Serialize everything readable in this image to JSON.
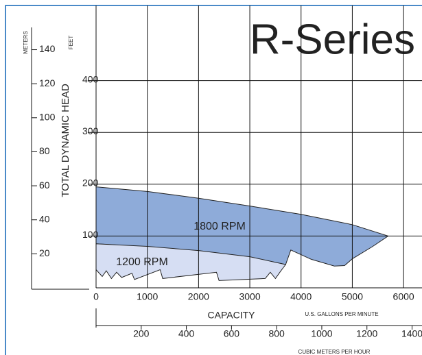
{
  "chart_data": {
    "type": "area",
    "title": "R-Series",
    "y_label": "TOTAL DYNAMIC HEAD",
    "y_unit": "FEET",
    "y2_unit": "METERS",
    "x_label": "CAPACITY",
    "x_unit": "U.S. GALLONS PER MINUTE",
    "x2_unit": "CUBIC METERS PER HOUR",
    "xlim": [
      0,
      6360
    ],
    "xticks": [
      0,
      1000,
      2000,
      3000,
      4000,
      5000,
      6000
    ],
    "x2lim": [
      0,
      1444
    ],
    "x2ticks": [
      200,
      400,
      600,
      800,
      1000,
      1200,
      1400
    ],
    "ylim": [
      0,
      545
    ],
    "yticks": [
      100,
      200,
      300,
      400
    ],
    "y2lim": [
      0,
      166
    ],
    "y2ticks": [
      20,
      40,
      60,
      80,
      100,
      120,
      140
    ],
    "grid": true,
    "series": [
      {
        "name": "1800 RPM",
        "color": "#8eabd9",
        "x": [
          0,
          1000,
          2000,
          3000,
          4000,
          5000,
          5700,
          5400,
          5000,
          4850,
          4650,
          4200,
          3800,
          3700,
          3000,
          2000,
          1000,
          0
        ],
        "values": [
          195,
          186,
          173,
          158,
          142,
          122,
          100,
          80,
          56,
          43,
          42,
          55,
          73,
          45,
          59,
          71,
          79,
          85
        ]
      },
      {
        "name": "1200 RPM",
        "color": "#d6def3",
        "x": [
          0,
          1000,
          2000,
          3000,
          3700,
          3600,
          3500,
          3400,
          3300,
          2400,
          2350,
          1300,
          1250,
          750,
          700,
          500,
          400,
          300,
          200,
          120,
          0
        ],
        "values": [
          85,
          80,
          72,
          60,
          45,
          32,
          18,
          30,
          18,
          14,
          30,
          18,
          35,
          16,
          28,
          20,
          30,
          18,
          33,
          22,
          35
        ]
      }
    ]
  }
}
